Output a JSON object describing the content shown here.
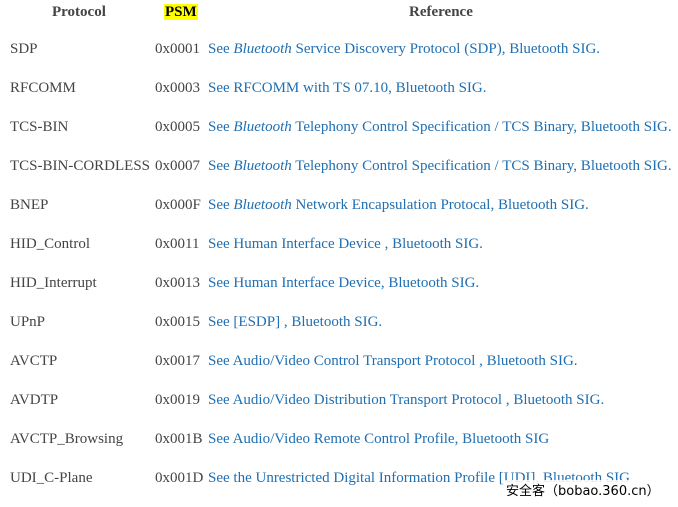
{
  "headers": {
    "protocol": "Protocol",
    "psm": "PSM",
    "reference": "Reference"
  },
  "highlight_color": "#ffff00",
  "link_color": "#1f6fb2",
  "rows": [
    {
      "protocol": "SDP",
      "psm": "0x0001",
      "ref_pre": "See ",
      "ref_italic": "Bluetooth",
      "ref_post": " Service Discovery Protocol (SDP), Bluetooth SIG."
    },
    {
      "protocol": "RFCOMM",
      "psm": "0x0003",
      "ref_pre": "See RFCOMM with TS 07.10, Bluetooth SIG.",
      "ref_italic": "",
      "ref_post": ""
    },
    {
      "protocol": "TCS-BIN",
      "psm": "0x0005",
      "ref_pre": "See ",
      "ref_italic": "Bluetooth",
      "ref_post": " Telephony Control Specification / TCS Binary, Bluetooth SIG."
    },
    {
      "protocol": "TCS-BIN-CORDLESS",
      "psm": "0x0007",
      "ref_pre": "See ",
      "ref_italic": "Bluetooth",
      "ref_post": " Telephony Control Specification / TCS Binary, Bluetooth SIG."
    },
    {
      "protocol": "BNEP",
      "psm": "0x000F",
      "ref_pre": "See ",
      "ref_italic": "Bluetooth",
      "ref_post": " Network Encapsulation Protocal, Bluetooth SIG."
    },
    {
      "protocol": "HID_Control",
      "psm": "0x0011",
      "ref_pre": "See Human Interface Device , Bluetooth SIG.",
      "ref_italic": "",
      "ref_post": ""
    },
    {
      "protocol": "HID_Interrupt",
      "psm": "0x0013",
      "ref_pre": "See Human Interface Device, Bluetooth SIG.",
      "ref_italic": "",
      "ref_post": ""
    },
    {
      "protocol": "UPnP",
      "psm": "0x0015",
      "ref_pre": "See [ESDP] , Bluetooth SIG.",
      "ref_italic": "",
      "ref_post": ""
    },
    {
      "protocol": "AVCTP",
      "psm": "0x0017",
      "ref_pre": "See Audio/Video Control Transport Protocol , Bluetooth SIG.",
      "ref_italic": "",
      "ref_post": ""
    },
    {
      "protocol": "AVDTP",
      "psm": "0x0019",
      "ref_pre": "See Audio/Video Distribution Transport Protocol , Bluetooth SIG.",
      "ref_italic": "",
      "ref_post": ""
    },
    {
      "protocol": "AVCTP_Browsing",
      "psm": "0x001B",
      "ref_pre": "See Audio/Video Remote Control Profile, Bluetooth SIG",
      "ref_italic": "",
      "ref_post": ""
    },
    {
      "protocol": "UDI_C-Plane",
      "psm": "0x001D",
      "ref_pre": "See the Unrestricted Digital Information Profile [UDI], Bluetooth SIG",
      "ref_italic": "",
      "ref_post": ""
    }
  ],
  "watermark": "安全客（bobao.360.cn）"
}
